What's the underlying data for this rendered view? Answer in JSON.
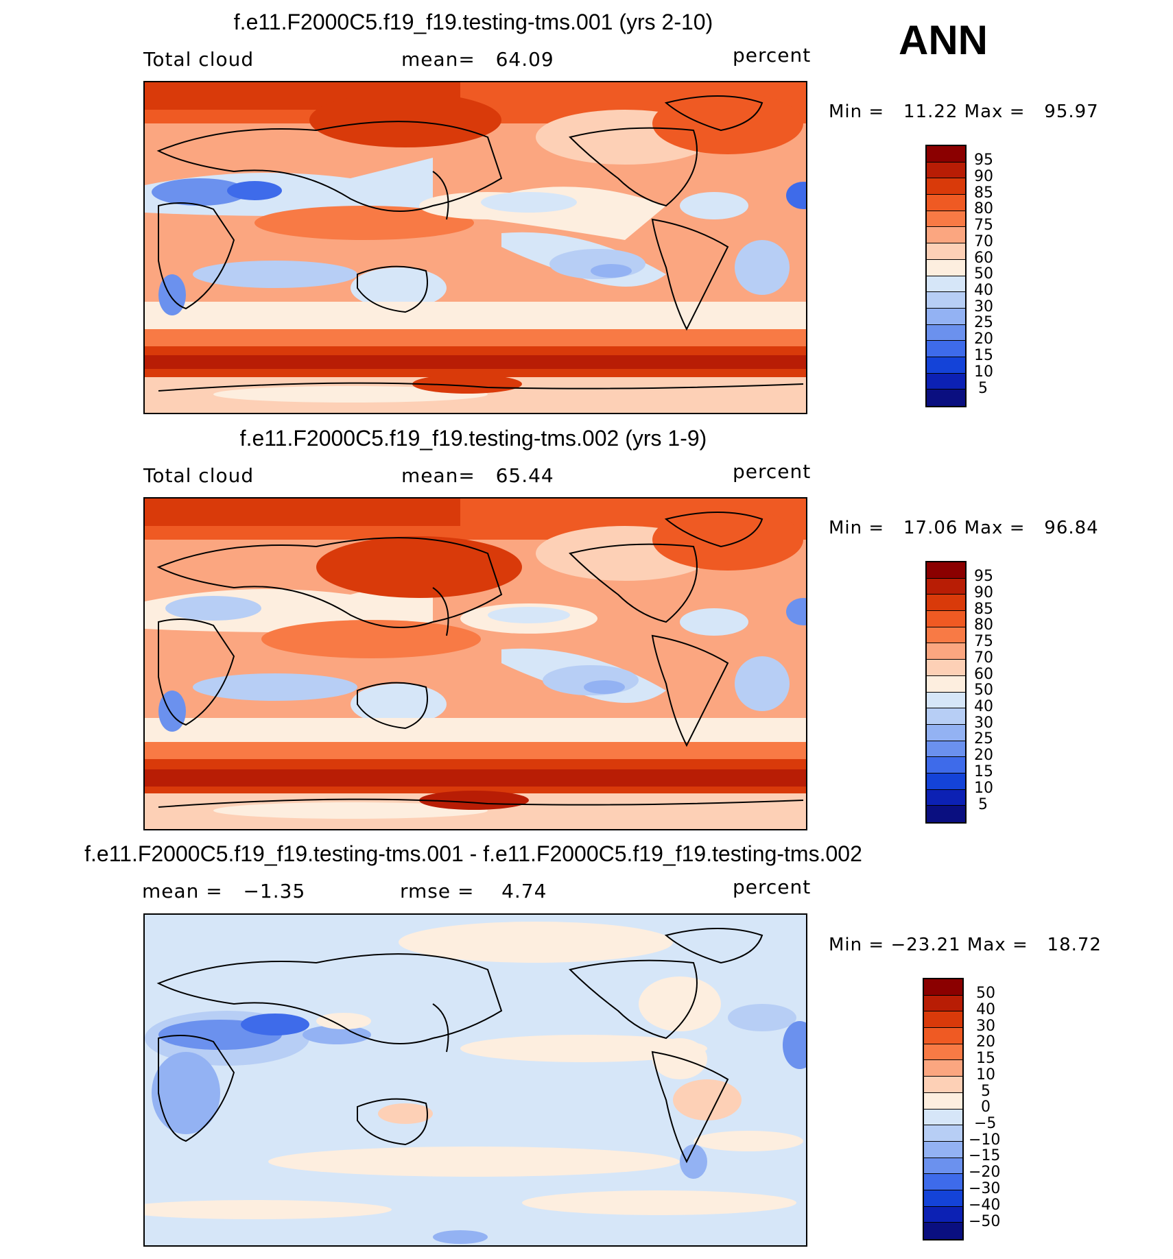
{
  "season": "ANN",
  "panels": [
    {
      "title": "f.e11.F2000C5.f19_f19.testing-tms.001 (yrs 2-10)",
      "left_label": "Total cloud",
      "center_label": "mean=   64.09",
      "units": "percent",
      "minmax": "Min =   11.22 Max =   95.97",
      "colorbar_labels": [
        "95",
        "90",
        "85",
        "80",
        "75",
        "70",
        "60",
        "50",
        "40",
        "30",
        "25",
        "20",
        "15",
        "10",
        "5"
      ]
    },
    {
      "title": "f.e11.F2000C5.f19_f19.testing-tms.002 (yrs 1-9)",
      "left_label": "Total cloud",
      "center_label": "mean=   65.44",
      "units": "percent",
      "minmax": "Min =   17.06 Max =   96.84",
      "colorbar_labels": [
        "95",
        "90",
        "85",
        "80",
        "75",
        "70",
        "60",
        "50",
        "40",
        "30",
        "25",
        "20",
        "15",
        "10",
        "5"
      ]
    },
    {
      "title": "f.e11.F2000C5.f19_f19.testing-tms.001 - f.e11.F2000C5.f19_f19.testing-tms.002",
      "left_label": "mean =   −1.35",
      "center_label": "rmse =    4.74",
      "units": "percent",
      "minmax": "Min = −23.21 Max =   18.72",
      "colorbar_labels": [
        "50",
        "40",
        "30",
        "20",
        "15",
        "10",
        "5",
        "0",
        "−5",
        "−10",
        "−15",
        "−20",
        "−30",
        "−40",
        "−50"
      ]
    }
  ],
  "colors": {
    "scale": [
      "#8b0000",
      "#b81d05",
      "#d93a0a",
      "#ef5a23",
      "#f87a45",
      "#fba680",
      "#fdd0b6",
      "#fdeedf",
      "#d6e6f8",
      "#b7cef5",
      "#93b2f3",
      "#6b91ee",
      "#3e6bea",
      "#1443d8",
      "#0c21b4",
      "#0a0f80"
    ],
    "land_outline": "#000000"
  }
}
